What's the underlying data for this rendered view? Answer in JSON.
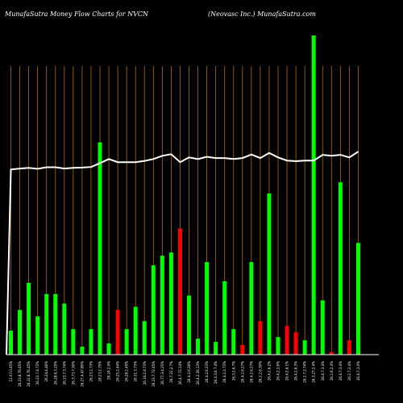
{
  "header": {
    "left_title": "MunafaSutra  Money Flow  Charts for NVCN",
    "right_title": "(Neovasc Inc.) MunafaSutra.com"
  },
  "colors": {
    "background": "#000000",
    "gridline": "#b36b00",
    "up_bar": "#00ff00",
    "down_bar": "#ff0000",
    "price_line": "#ffffff",
    "baseline": "#ffffff"
  },
  "chart_data": {
    "type": "bar",
    "title": "MunafaSutra  Money Flow  Charts for NVCN",
    "subtitle": "(Neovasc Inc.) MunafaSutra.com",
    "value_range": [
      0,
      100
    ],
    "grid": "vertical",
    "series": [
      {
        "kind": "bars",
        "values": [
          7.5,
          14,
          22.5,
          12,
          19,
          19,
          16,
          8,
          2.5,
          8,
          66.5,
          3.5,
          14,
          8,
          15,
          10.5,
          28,
          31,
          32,
          39.5,
          18.5,
          5,
          29,
          4,
          23,
          8,
          3,
          29,
          10.5,
          50.5,
          5.5,
          9,
          7,
          4.5,
          100,
          17,
          0.8,
          54,
          4.5,
          35
        ],
        "directions": [
          "up",
          "up",
          "up",
          "up",
          "up",
          "up",
          "up",
          "up",
          "up",
          "up",
          "up",
          "up",
          "down",
          "up",
          "up",
          "up",
          "up",
          "up",
          "up",
          "down",
          "up",
          "up",
          "up",
          "up",
          "up",
          "up",
          "down",
          "up",
          "down",
          "up",
          "up",
          "down",
          "down",
          "up",
          "up",
          "up",
          "down",
          "up",
          "down",
          "up"
        ]
      },
      {
        "kind": "line",
        "values": [
          58,
          58.3,
          58.5,
          58.2,
          58.7,
          58.7,
          58.3,
          58.5,
          58.6,
          58.8,
          60,
          61.3,
          60.3,
          60.3,
          60.3,
          60.7,
          61.3,
          62.3,
          62.8,
          60.3,
          61.8,
          61.3,
          62,
          61.6,
          61.6,
          61.3,
          61.6,
          62.7,
          61.6,
          63.2,
          61.8,
          60.8,
          60.6,
          60.8,
          60.8,
          62.6,
          62.3,
          62.6,
          61.8,
          63.6
        ]
      }
    ],
    "x_tick_labels": [
      "12.07.0.45%",
      "26.23.8.76.45%",
      "26.22.8.76.45%",
      "26.23.7.4.73%",
      "26.24.4.46%",
      "26.28.6.3.25%",
      "26.23.7.3.74%",
      "26.3.73.7.30%",
      "26.27.4.47.80%",
      "26.23.2.73%",
      "28.23.2.75%",
      "26.24.2.0%",
      "26.25.2.44%",
      "26.28.2.45%",
      "26.31.3.73%",
      "26.34.2.4.73%",
      "26.23.7.72.45%",
      "26.77.3.4.25%",
      "26.7.22.2.7%",
      "26.4.7.72.14%",
      "26.4.2.6.26%",
      "26.4.2.26.13%",
      "26.4.2.6.23%",
      "26.4.3.6.7.4%",
      "26.4.2.2.73%",
      "26.3.2.6.7%",
      "26.4.2.6.27%",
      "26.4.2.6.27%",
      "26.2.2.6.30%",
      "26.4.2.6.2%",
      "26.4.2.2.6%",
      "26.4.2.6.1%",
      "26.4.2.6.3%",
      "26.2.7.2.74%",
      "26.3.27.2.4%",
      "26.4.7.3.4%",
      "26.2.6.2.4%",
      "26.4.7.3.4%",
      "26.2.7.2.4%",
      "26.4.7.3.0%"
    ]
  }
}
